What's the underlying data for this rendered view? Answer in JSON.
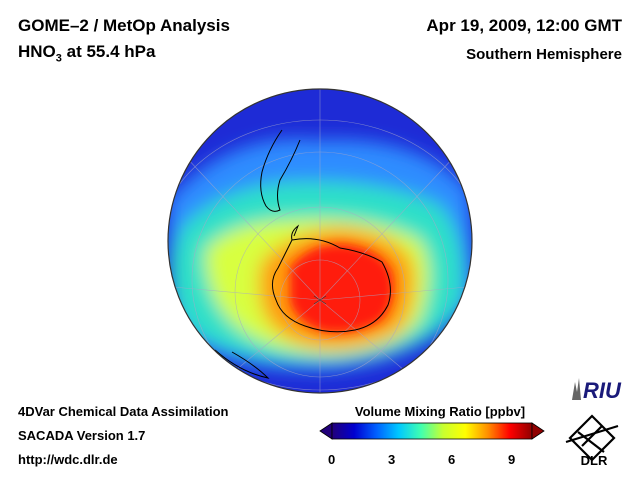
{
  "header": {
    "title_line1": "GOME–2 / MetOp Analysis",
    "species": "HNO",
    "species_sub": "3",
    "level": " at 55.4 hPa",
    "date": "Apr 19, 2009, 12:00 GMT",
    "hemisphere": "Southern Hemisphere"
  },
  "footer": {
    "line1": "4DVar Chemical Data Assimilation",
    "line2": "SACADA Version 1.7",
    "line3": "http://wdc.dlr.de"
  },
  "colorbar": {
    "title": "Volume Mixing Ratio [ppbv]",
    "ticks": [
      "0",
      "3",
      "6",
      "9"
    ],
    "min": 0,
    "max": 10,
    "colors": [
      "#22007a",
      "#0000d0",
      "#0060ff",
      "#00c8ff",
      "#40ffb0",
      "#c8ff30",
      "#ffff00",
      "#ff9000",
      "#ff0000",
      "#900000"
    ]
  },
  "logos": {
    "riu": "RIU",
    "dlr": "DLR"
  },
  "map": {
    "projection": "orthographic",
    "center": "South Pole",
    "colors": {
      "background": "#1e2bd6",
      "band": "#2f8cff",
      "ring": "#2ee0c8",
      "yellow": "#d8ff40",
      "orange": "#ff9a10",
      "core": "#ff1e10",
      "coast": "#000000",
      "grid": "#a8a8c8"
    }
  }
}
